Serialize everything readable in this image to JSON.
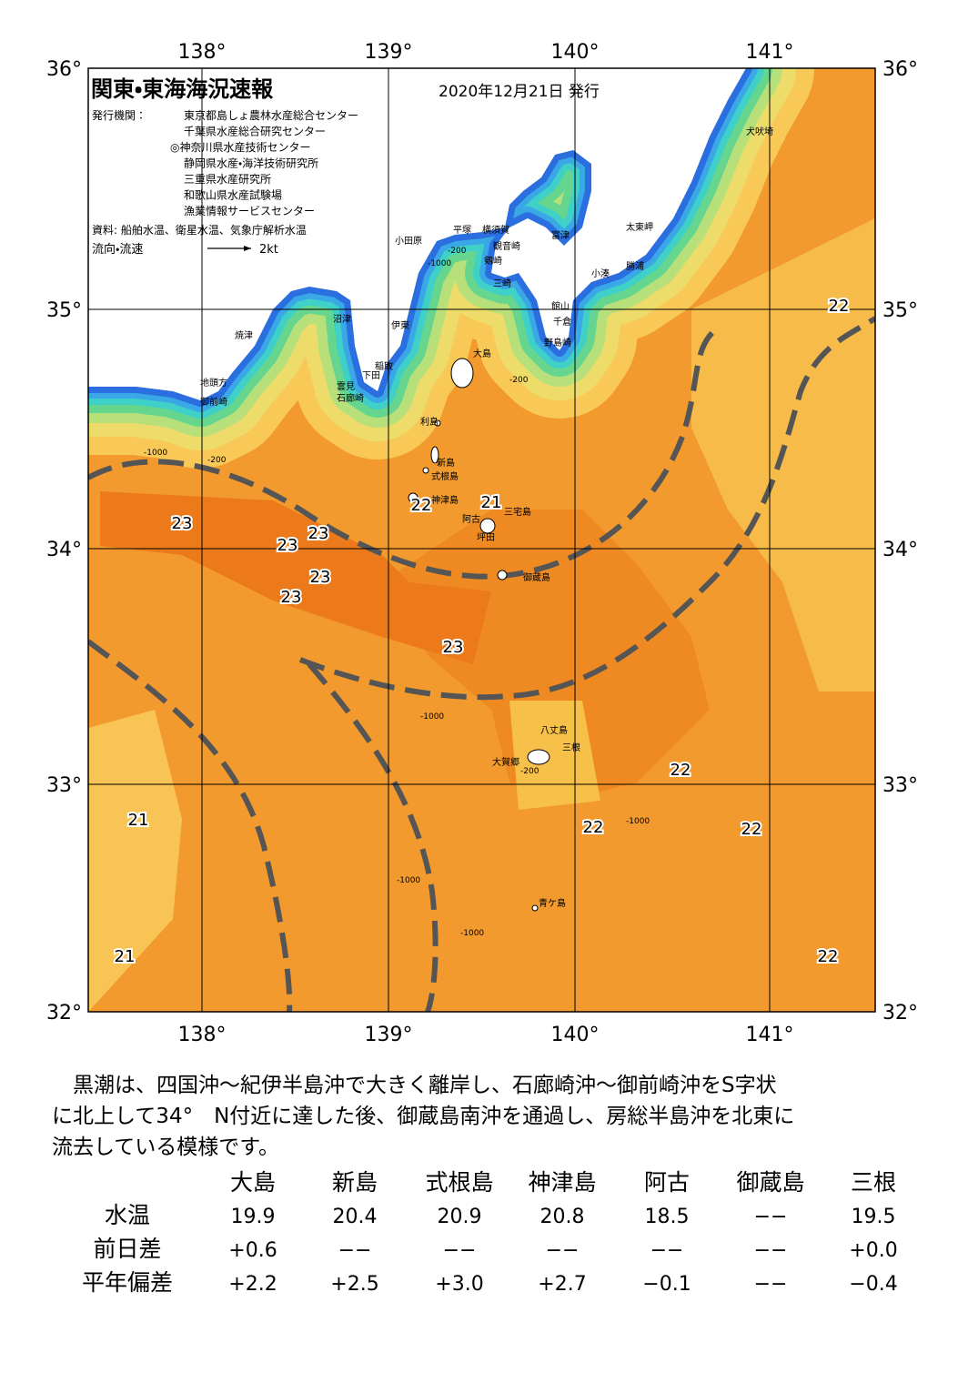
{
  "map": {
    "title": "関東・東海海況速報",
    "date": "2020年12月21日 発行",
    "publisher_label": "発行機関：",
    "publishers": [
      "東京都島しょ農林水産総合センター",
      "千葉県水産総合研究センター",
      "◎神奈川県水産技術センター",
      "静岡県水産・海洋技術研究所",
      "三重県水産研究所",
      "和歌山県水産試験場",
      "漁業情報サービスセンター"
    ],
    "source": "資料: 船舶水温、衛星水温、気象庁解析水温",
    "legend_label": "流向・流速",
    "legend_speed": "2kt",
    "lon_labels": [
      "138°",
      "139°",
      "140°",
      "141°"
    ],
    "lat_labels": [
      "36°",
      "35°",
      "34°",
      "33°",
      "32°"
    ],
    "places": [
      "犬吠埼",
      "太東岬",
      "勝浦",
      "小湊",
      "館山",
      "千倉",
      "野島崎",
      "富津",
      "横須賀",
      "観音崎",
      "平塚",
      "剱崎",
      "三崎",
      "小田原",
      "沼津",
      "伊東",
      "焼津",
      "稲取",
      "下田",
      "雲見",
      "石廊崎",
      "地頭方",
      "御前崎",
      "大島",
      "利島",
      "新島",
      "式根島",
      "神津島",
      "三宅島",
      "阿古",
      "坪田",
      "御蔵島",
      "八丈島",
      "三根",
      "大賀郷",
      "青ケ島"
    ],
    "temperatures": [
      "22",
      "22",
      "21",
      "23",
      "23",
      "23",
      "23",
      "23",
      "23",
      "22",
      "21",
      "22",
      "22",
      "21",
      "22"
    ],
    "depth_labels": [
      "-200",
      "-1000",
      "-200",
      "-1000",
      "-200",
      "-1000",
      "-1000",
      "-1000",
      "-1000",
      "-200"
    ]
  },
  "description": [
    "　黒潮は、四国沖～紀伊半島沖で大きく離岸し、石廊崎沖～御前崎沖をS字状",
    "に北上して34°　N付近に達した後、御蔵島南沖を通過し、房総半島沖を北東に",
    "流去している模様です。"
  ],
  "table": {
    "header": [
      "大島",
      "新島",
      "式根島",
      "神津島",
      "阿古",
      "御蔵島",
      "三根"
    ],
    "rows": [
      [
        "水温",
        "19.9",
        "20.4",
        "20.9",
        "20.8",
        "18.5",
        "−−",
        "19.5"
      ],
      [
        "前日差",
        "+0.6",
        "−−",
        "−−",
        "−−",
        "−−",
        "−−",
        "+0.0"
      ],
      [
        "平年偏差",
        "+2.2",
        "+2.5",
        "+3.0",
        "+2.7",
        "−0.1",
        "−−",
        "−0.4"
      ]
    ]
  }
}
